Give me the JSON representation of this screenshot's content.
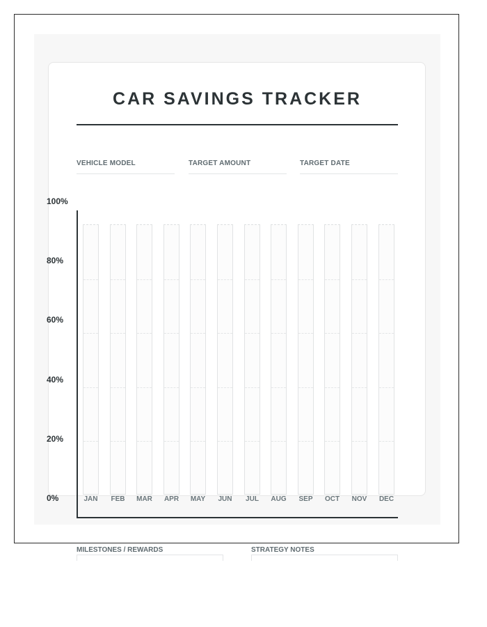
{
  "header": {
    "title": "CAR SAVINGS TRACKER"
  },
  "fields": [
    {
      "label": "VEHICLE MODEL",
      "value": ""
    },
    {
      "label": "TARGET AMOUNT",
      "value": ""
    },
    {
      "label": "TARGET DATE",
      "value": ""
    }
  ],
  "sections": [
    {
      "label": "MILESTONES / REWARDS"
    },
    {
      "label": "STRATEGY NOTES"
    }
  ],
  "colors": {
    "text_dark": "#2c3336",
    "label_gray": "#5f6b70",
    "panel_bg": "#f7f7f7"
  },
  "chart_data": {
    "type": "bar",
    "title": "CAR SAVINGS TRACKER",
    "xlabel": "",
    "ylabel": "",
    "categories": [
      "JAN",
      "FEB",
      "MAR",
      "APR",
      "MAY",
      "JUN",
      "JUL",
      "AUG",
      "SEP",
      "OCT",
      "NOV",
      "DEC"
    ],
    "values": [
      0,
      0,
      0,
      0,
      0,
      0,
      0,
      0,
      0,
      0,
      0,
      0
    ],
    "y_ticks": [
      "100%",
      "80%",
      "60%",
      "40%",
      "20%",
      "0%"
    ],
    "ylim": [
      0,
      100
    ],
    "grid": true,
    "legend": null
  }
}
